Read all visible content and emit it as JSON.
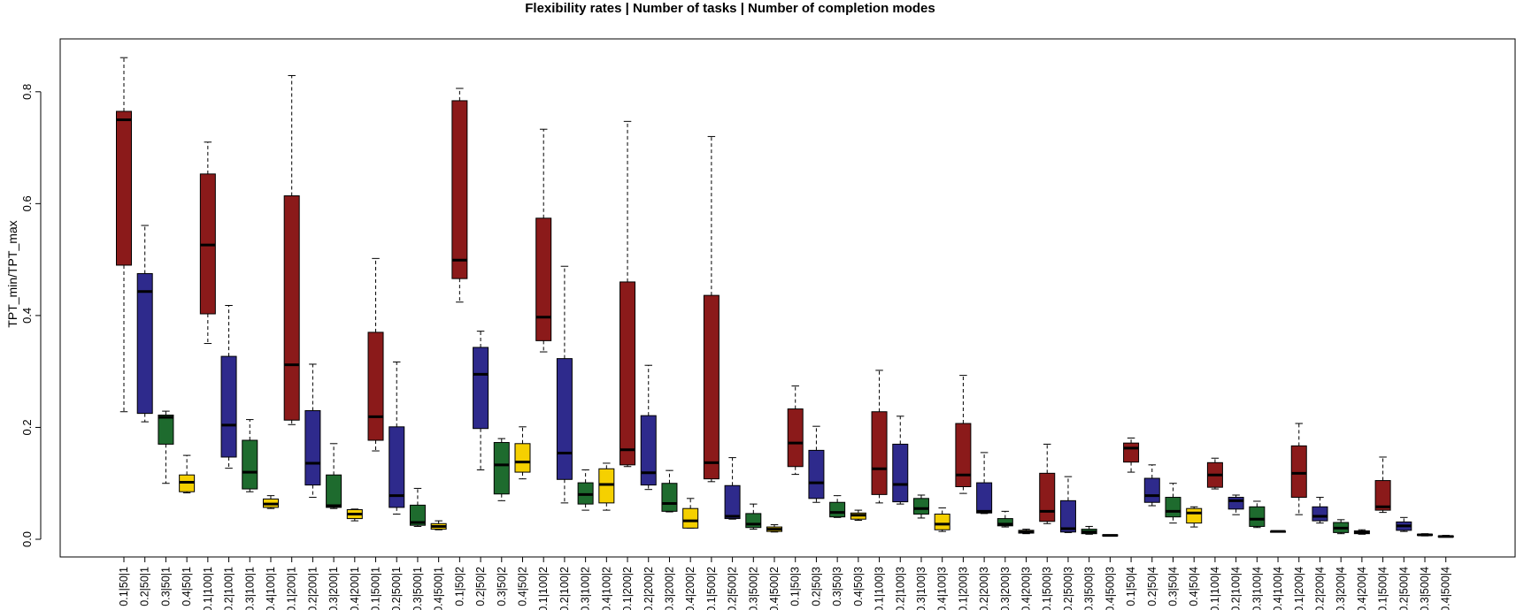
{
  "chart_data": {
    "type": "box",
    "title": "Flexibility rates | Number of tasks | Number of completion modes",
    "ylabel": "TPT_min/TPT_max",
    "xlabel": "",
    "ylim": [
      -0.028,
      0.895
    ],
    "yticks": [
      "0.0",
      "0.2",
      "0.4",
      "0.6",
      "0.8"
    ],
    "ytick_values": [
      0.0,
      0.2,
      0.4,
      0.6,
      0.8
    ],
    "grid": false,
    "colors": {
      "0.1": "#8B1A1A",
      "0.2": "#2E2A8C",
      "0.3": "#1E6B2E",
      "0.4": "#F5D000"
    },
    "categories": [
      "0.1|50|1",
      "0.2|50|1",
      "0.3|50|1",
      "0.4|50|1",
      "0.1|100|1",
      "0.2|100|1",
      "0.3|100|1",
      "0.4|100|1",
      "0.1|200|1",
      "0.2|200|1",
      "0.3|200|1",
      "0.4|200|1",
      "0.1|500|1",
      "0.2|500|1",
      "0.3|500|1",
      "0.4|500|1",
      "0.1|50|2",
      "0.2|50|2",
      "0.3|50|2",
      "0.4|50|2",
      "0.1|100|2",
      "0.2|100|2",
      "0.3|100|2",
      "0.4|100|2",
      "0.1|200|2",
      "0.2|200|2",
      "0.3|200|2",
      "0.4|200|2",
      "0.1|500|2",
      "0.2|500|2",
      "0.3|500|2",
      "0.4|500|2",
      "0.1|50|3",
      "0.2|50|3",
      "0.3|50|3",
      "0.4|50|3",
      "0.1|100|3",
      "0.2|100|3",
      "0.3|100|3",
      "0.4|100|3",
      "0.1|200|3",
      "0.2|200|3",
      "0.3|200|3",
      "0.4|200|3",
      "0.1|500|3",
      "0.2|500|3",
      "0.3|500|3",
      "0.4|500|3",
      "0.1|50|4",
      "0.2|50|4",
      "0.3|50|4",
      "0.4|50|4",
      "0.1|100|4",
      "0.2|100|4",
      "0.3|100|4",
      "0.4|100|4",
      "0.1|200|4",
      "0.2|200|4",
      "0.3|200|4",
      "0.4|200|4",
      "0.1|500|4",
      "0.2|500|4",
      "0.3|500|4",
      "0.4|500|4"
    ],
    "boxes": [
      [
        0.228,
        0.49,
        0.75,
        0.765,
        0.861
      ],
      [
        0.21,
        0.225,
        0.443,
        0.475,
        0.561
      ],
      [
        0.1,
        0.17,
        0.218,
        0.222,
        0.229
      ],
      [
        0.083,
        0.085,
        0.102,
        0.115,
        0.15
      ],
      [
        0.35,
        0.403,
        0.526,
        0.653,
        0.71
      ],
      [
        0.127,
        0.147,
        0.204,
        0.327,
        0.418
      ],
      [
        0.085,
        0.09,
        0.12,
        0.177,
        0.214
      ],
      [
        0.055,
        0.057,
        0.063,
        0.072,
        0.078
      ],
      [
        0.205,
        0.213,
        0.312,
        0.614,
        0.829
      ],
      [
        0.075,
        0.097,
        0.136,
        0.23,
        0.313
      ],
      [
        0.055,
        0.057,
        0.06,
        0.115,
        0.171
      ],
      [
        0.033,
        0.037,
        0.045,
        0.053,
        0.054
      ],
      [
        0.158,
        0.177,
        0.219,
        0.37,
        0.502
      ],
      [
        0.045,
        0.057,
        0.078,
        0.201,
        0.317
      ],
      [
        0.023,
        0.025,
        0.03,
        0.061,
        0.091
      ],
      [
        0.017,
        0.018,
        0.023,
        0.028,
        0.033
      ],
      [
        0.424,
        0.466,
        0.499,
        0.784,
        0.806
      ],
      [
        0.124,
        0.198,
        0.295,
        0.343,
        0.372
      ],
      [
        0.069,
        0.081,
        0.133,
        0.173,
        0.18
      ],
      [
        0.108,
        0.12,
        0.138,
        0.171,
        0.201
      ],
      [
        0.335,
        0.355,
        0.397,
        0.574,
        0.733
      ],
      [
        0.065,
        0.107,
        0.154,
        0.323,
        0.488
      ],
      [
        0.052,
        0.063,
        0.08,
        0.101,
        0.124
      ],
      [
        0.052,
        0.065,
        0.098,
        0.126,
        0.136
      ],
      [
        0.13,
        0.133,
        0.16,
        0.46,
        0.747
      ],
      [
        0.089,
        0.097,
        0.119,
        0.221,
        0.311
      ],
      [
        0.049,
        0.05,
        0.064,
        0.1,
        0.123
      ],
      [
        0.02,
        0.02,
        0.033,
        0.055,
        0.073
      ],
      [
        0.103,
        0.108,
        0.137,
        0.436,
        0.72
      ],
      [
        0.036,
        0.037,
        0.041,
        0.096,
        0.146
      ],
      [
        0.018,
        0.021,
        0.027,
        0.046,
        0.063
      ],
      [
        0.013,
        0.014,
        0.018,
        0.022,
        0.026
      ],
      [
        0.116,
        0.13,
        0.172,
        0.233,
        0.274
      ],
      [
        0.066,
        0.073,
        0.101,
        0.159,
        0.202
      ],
      [
        0.039,
        0.04,
        0.048,
        0.066,
        0.078
      ],
      [
        0.034,
        0.036,
        0.043,
        0.047,
        0.052
      ],
      [
        0.065,
        0.08,
        0.126,
        0.228,
        0.302
      ],
      [
        0.063,
        0.067,
        0.098,
        0.17,
        0.22
      ],
      [
        0.038,
        0.045,
        0.055,
        0.073,
        0.079
      ],
      [
        0.014,
        0.017,
        0.027,
        0.045,
        0.056
      ],
      [
        0.082,
        0.094,
        0.115,
        0.207,
        0.293
      ],
      [
        0.046,
        0.047,
        0.05,
        0.101,
        0.155
      ],
      [
        0.022,
        0.024,
        0.027,
        0.037,
        0.05
      ],
      [
        0.01,
        0.011,
        0.013,
        0.016,
        0.018
      ],
      [
        0.028,
        0.032,
        0.05,
        0.118,
        0.17
      ],
      [
        0.012,
        0.013,
        0.019,
        0.069,
        0.112
      ],
      [
        0.009,
        0.01,
        0.013,
        0.018,
        0.023
      ],
      [
        0.006,
        0.006,
        0.007,
        0.008,
        0.008
      ],
      [
        0.12,
        0.138,
        0.163,
        0.172,
        0.181
      ],
      [
        0.06,
        0.066,
        0.078,
        0.109,
        0.133
      ],
      [
        0.029,
        0.04,
        0.05,
        0.075,
        0.1
      ],
      [
        0.022,
        0.029,
        0.047,
        0.055,
        0.058
      ],
      [
        0.09,
        0.093,
        0.115,
        0.137,
        0.145
      ],
      [
        0.044,
        0.054,
        0.069,
        0.075,
        0.079
      ],
      [
        0.021,
        0.023,
        0.036,
        0.058,
        0.068
      ],
      [
        0.013,
        0.013,
        0.014,
        0.014,
        0.015
      ],
      [
        0.044,
        0.075,
        0.118,
        0.167,
        0.207
      ],
      [
        0.029,
        0.033,
        0.041,
        0.058,
        0.075
      ],
      [
        0.01,
        0.012,
        0.02,
        0.03,
        0.035
      ],
      [
        0.009,
        0.01,
        0.012,
        0.015,
        0.017
      ],
      [
        0.048,
        0.052,
        0.058,
        0.105,
        0.147
      ],
      [
        0.014,
        0.016,
        0.024,
        0.031,
        0.039
      ],
      [
        0.006,
        0.007,
        0.008,
        0.009,
        0.01
      ],
      [
        0.004,
        0.004,
        0.005,
        0.006,
        0.007
      ]
    ]
  }
}
